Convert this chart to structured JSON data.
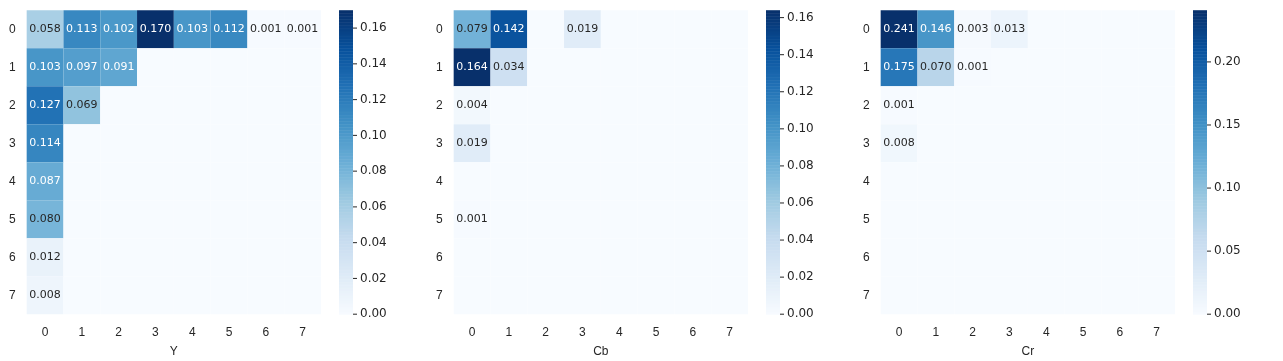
{
  "chart_data": [
    {
      "type": "heatmap",
      "xlabel": "Y",
      "categories": [
        "0",
        "1",
        "2",
        "3",
        "4",
        "5",
        "6",
        "7"
      ],
      "y_categories": [
        "0",
        "1",
        "2",
        "3",
        "4",
        "5",
        "6",
        "7"
      ],
      "cells": [
        [
          0.058,
          0.113,
          0.102,
          0.17,
          0.103,
          0.112,
          0.001,
          0.001
        ],
        [
          0.103,
          0.097,
          0.091,
          0,
          0,
          0,
          0,
          0
        ],
        [
          0.127,
          0.069,
          0,
          0,
          0,
          0,
          0,
          0
        ],
        [
          0.114,
          0,
          0,
          0,
          0,
          0,
          0,
          0
        ],
        [
          0.087,
          0,
          0,
          0,
          0,
          0,
          0,
          0
        ],
        [
          0.08,
          0,
          0,
          0,
          0,
          0,
          0,
          0
        ],
        [
          0.012,
          0,
          0,
          0,
          0,
          0,
          0,
          0
        ],
        [
          0.008,
          0,
          0,
          0,
          0,
          0,
          0,
          0
        ]
      ],
      "cell_labels": [
        [
          "0.058",
          "0.113",
          "0.102",
          "0.170",
          "0.103",
          "0.112",
          "0.001",
          "0.001"
        ],
        [
          "0.103",
          "0.097",
          "0.091",
          null,
          null,
          null,
          null,
          null
        ],
        [
          "0.127",
          "0.069",
          null,
          null,
          null,
          null,
          null,
          null
        ],
        [
          "0.114",
          null,
          null,
          null,
          null,
          null,
          null,
          null
        ],
        [
          "0.087",
          null,
          null,
          null,
          null,
          null,
          null,
          null
        ],
        [
          "0.080",
          null,
          null,
          null,
          null,
          null,
          null,
          null
        ],
        [
          "0.012",
          null,
          null,
          null,
          null,
          null,
          null,
          null
        ],
        [
          "0.008",
          null,
          null,
          null,
          null,
          null,
          null,
          null
        ]
      ],
      "clim": [
        0,
        0.17
      ],
      "cticks": [
        {
          "value": 0,
          "label": "0.00"
        },
        {
          "value": 0.02,
          "label": "0.02"
        },
        {
          "value": 0.04,
          "label": "0.04"
        },
        {
          "value": 0.06,
          "label": "0.06"
        },
        {
          "value": 0.08,
          "label": "0.08"
        },
        {
          "value": 0.1,
          "label": "0.10"
        },
        {
          "value": 0.12,
          "label": "0.12"
        },
        {
          "value": 0.14,
          "label": "0.14"
        },
        {
          "value": 0.16,
          "label": "0.16"
        }
      ]
    },
    {
      "type": "heatmap",
      "xlabel": "Cb",
      "categories": [
        "0",
        "1",
        "2",
        "3",
        "4",
        "5",
        "6",
        "7"
      ],
      "y_categories": [
        "0",
        "1",
        "2",
        "3",
        "4",
        "5",
        "6",
        "7"
      ],
      "cells": [
        [
          0.079,
          0.142,
          0,
          0.019,
          0,
          0,
          0,
          0
        ],
        [
          0.164,
          0.034,
          0,
          0,
          0,
          0,
          0,
          0
        ],
        [
          0.004,
          0,
          0,
          0,
          0,
          0,
          0,
          0
        ],
        [
          0.019,
          0,
          0,
          0,
          0,
          0,
          0,
          0
        ],
        [
          0,
          0,
          0,
          0,
          0,
          0,
          0,
          0
        ],
        [
          0.001,
          0,
          0,
          0,
          0,
          0,
          0,
          0
        ],
        [
          0,
          0,
          0,
          0,
          0,
          0,
          0,
          0
        ],
        [
          0,
          0,
          0,
          0,
          0,
          0,
          0,
          0
        ]
      ],
      "cell_labels": [
        [
          "0.079",
          "0.142",
          null,
          "0.019",
          null,
          null,
          null,
          null
        ],
        [
          "0.164",
          "0.034",
          null,
          null,
          null,
          null,
          null,
          null
        ],
        [
          "0.004",
          null,
          null,
          null,
          null,
          null,
          null,
          null
        ],
        [
          "0.019",
          null,
          null,
          null,
          null,
          null,
          null,
          null
        ],
        [
          null,
          null,
          null,
          null,
          null,
          null,
          null,
          null
        ],
        [
          "0.001",
          null,
          null,
          null,
          null,
          null,
          null,
          null
        ],
        [
          null,
          null,
          null,
          null,
          null,
          null,
          null,
          null
        ],
        [
          null,
          null,
          null,
          null,
          null,
          null,
          null,
          null
        ]
      ],
      "clim": [
        0,
        0.164
      ],
      "cticks": [
        {
          "value": 0,
          "label": "0.00"
        },
        {
          "value": 0.02,
          "label": "0.02"
        },
        {
          "value": 0.04,
          "label": "0.04"
        },
        {
          "value": 0.06,
          "label": "0.06"
        },
        {
          "value": 0.08,
          "label": "0.08"
        },
        {
          "value": 0.1,
          "label": "0.10"
        },
        {
          "value": 0.12,
          "label": "0.12"
        },
        {
          "value": 0.14,
          "label": "0.14"
        },
        {
          "value": 0.16,
          "label": "0.16"
        }
      ]
    },
    {
      "type": "heatmap",
      "xlabel": "Cr",
      "categories": [
        "0",
        "1",
        "2",
        "3",
        "4",
        "5",
        "6",
        "7"
      ],
      "y_categories": [
        "0",
        "1",
        "2",
        "3",
        "4",
        "5",
        "6",
        "7"
      ],
      "cells": [
        [
          0.241,
          0.146,
          0.003,
          0.013,
          0,
          0,
          0,
          0
        ],
        [
          0.175,
          0.07,
          0.001,
          0,
          0,
          0,
          0,
          0
        ],
        [
          0.001,
          0,
          0,
          0,
          0,
          0,
          0,
          0
        ],
        [
          0.008,
          0,
          0,
          0,
          0,
          0,
          0,
          0
        ],
        [
          0,
          0,
          0,
          0,
          0,
          0,
          0,
          0
        ],
        [
          0,
          0,
          0,
          0,
          0,
          0,
          0,
          0
        ],
        [
          0,
          0,
          0,
          0,
          0,
          0,
          0,
          0
        ],
        [
          0,
          0,
          0,
          0,
          0,
          0,
          0,
          0
        ]
      ],
      "cell_labels": [
        [
          "0.241",
          "0.146",
          "0.003",
          "0.013",
          null,
          null,
          null,
          null
        ],
        [
          "0.175",
          "0.070",
          "0.001",
          null,
          null,
          null,
          null,
          null
        ],
        [
          "0.001",
          null,
          null,
          null,
          null,
          null,
          null,
          null
        ],
        [
          "0.008",
          null,
          null,
          null,
          null,
          null,
          null,
          null
        ],
        [
          null,
          null,
          null,
          null,
          null,
          null,
          null,
          null
        ],
        [
          null,
          null,
          null,
          null,
          null,
          null,
          null,
          null
        ],
        [
          null,
          null,
          null,
          null,
          null,
          null,
          null,
          null
        ],
        [
          null,
          null,
          null,
          null,
          null,
          null,
          null,
          null
        ]
      ],
      "clim": [
        0,
        0.241
      ],
      "cticks": [
        {
          "value": 0,
          "label": "0.00"
        },
        {
          "value": 0.05,
          "label": "0.05"
        },
        {
          "value": 0.1,
          "label": "0.10"
        },
        {
          "value": 0.15,
          "label": "0.15"
        },
        {
          "value": 0.2,
          "label": "0.20"
        }
      ]
    }
  ]
}
